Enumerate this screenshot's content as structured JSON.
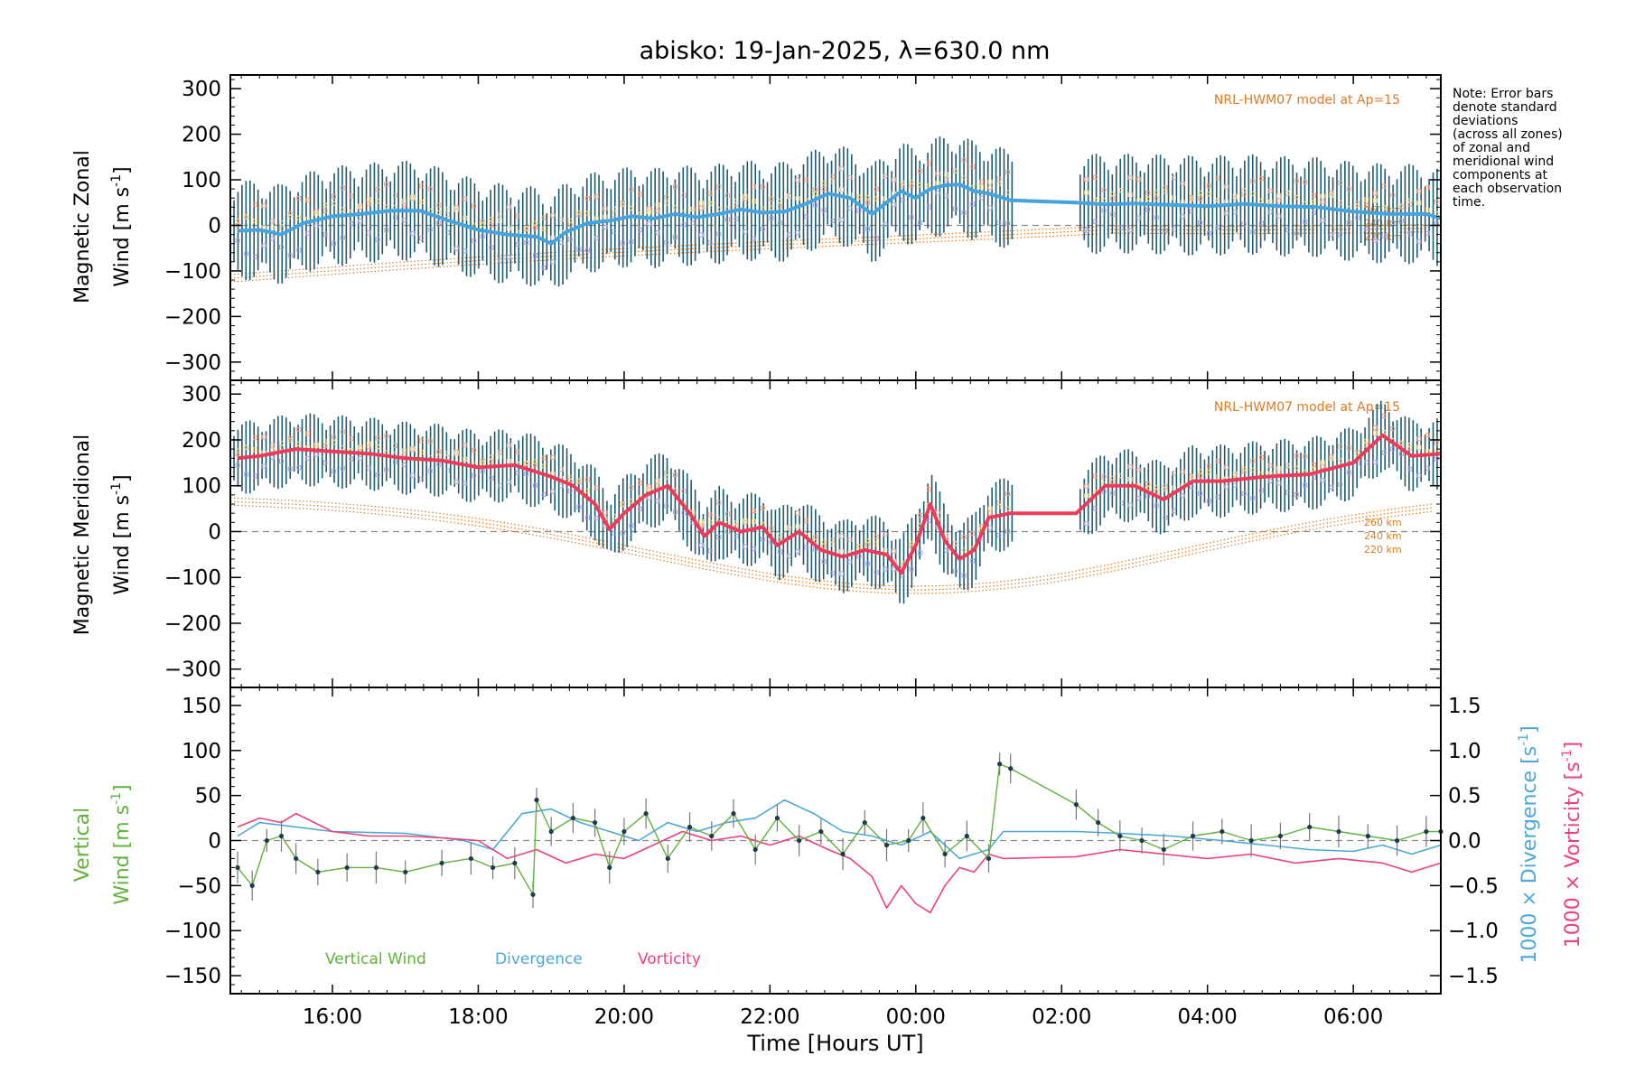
{
  "chart_data": [
    {
      "type": "line",
      "id": "zonal",
      "title": "abisko: 19-Jan-2025, λ=630.0 nm",
      "ylabel_line1": "Magnetic Zonal",
      "ylabel_line2": "Wind [m s",
      "ylabel_sup": "-1",
      "ylabel_end": "]",
      "ylim": [
        -340,
        330
      ],
      "yticks": [
        -300,
        -200,
        -100,
        0,
        100,
        200,
        300
      ],
      "xlim": [
        14.6,
        31.2
      ],
      "model_label": "NRL-HWM07 model at Ap=15",
      "model_altitudes": [
        "260 km",
        "240 km",
        "220 km"
      ],
      "series": [
        {
          "name": "Zonal Wind",
          "x": [
            14.7,
            15.0,
            15.3,
            15.6,
            16.0,
            16.4,
            16.8,
            17.2,
            17.6,
            18.0,
            18.4,
            18.8,
            19.0,
            19.2,
            19.5,
            19.8,
            20.1,
            20.4,
            20.7,
            21.0,
            21.3,
            21.6,
            21.9,
            22.2,
            22.5,
            22.8,
            23.1,
            23.4,
            23.6,
            23.8,
            24.0,
            24.2,
            24.4,
            24.6,
            24.8,
            25.0,
            25.3,
            26.2,
            26.6,
            27.0,
            27.5,
            28.0,
            28.5,
            29.0,
            29.5,
            30.0,
            30.5,
            31.0,
            31.2
          ],
          "values": [
            -12,
            -10,
            -20,
            5,
            20,
            25,
            32,
            32,
            10,
            -10,
            -20,
            -25,
            -40,
            -15,
            5,
            10,
            20,
            15,
            25,
            18,
            25,
            35,
            28,
            30,
            48,
            70,
            60,
            25,
            50,
            75,
            60,
            80,
            88,
            90,
            75,
            70,
            55,
            50,
            46,
            48,
            45,
            42,
            47,
            42,
            40,
            30,
            25,
            25,
            15
          ]
        }
      ],
      "error_bar_halfwidth": 110
    },
    {
      "type": "line",
      "id": "meridional",
      "ylabel_line1": "Magnetic Meridional",
      "ylabel_line2": "Wind [m s",
      "ylabel_sup": "-1",
      "ylabel_end": "]",
      "ylim": [
        -340,
        330
      ],
      "yticks": [
        -300,
        -200,
        -100,
        0,
        100,
        200,
        300
      ],
      "xlim": [
        14.6,
        31.2
      ],
      "model_label": "NRL-HWM07 model at Ap=15",
      "model_altitudes": [
        "260 km",
        "240 km",
        "220 km"
      ],
      "series": [
        {
          "name": "Meridional Wind",
          "x": [
            14.7,
            15.0,
            15.5,
            16.0,
            16.5,
            17.0,
            17.5,
            18.0,
            18.5,
            19.0,
            19.3,
            19.6,
            19.8,
            20.0,
            20.3,
            20.6,
            20.9,
            21.1,
            21.3,
            21.6,
            21.9,
            22.1,
            22.4,
            22.7,
            23.0,
            23.3,
            23.6,
            23.8,
            24.0,
            24.2,
            24.4,
            24.6,
            24.8,
            25.0,
            25.3,
            26.2,
            26.6,
            27.0,
            27.4,
            27.8,
            28.2,
            28.8,
            29.4,
            30.0,
            30.4,
            30.8,
            31.2
          ],
          "values": [
            160,
            165,
            180,
            175,
            170,
            160,
            155,
            140,
            145,
            120,
            100,
            60,
            5,
            40,
            80,
            100,
            40,
            -10,
            20,
            0,
            10,
            -30,
            0,
            -40,
            -55,
            -40,
            -50,
            -90,
            -30,
            60,
            -20,
            -60,
            -40,
            30,
            40,
            40,
            100,
            100,
            70,
            110,
            110,
            120,
            125,
            150,
            210,
            165,
            170
          ]
        }
      ],
      "error_bar_halfwidth": 80
    },
    {
      "type": "line",
      "id": "vertical",
      "ylabel_line1": "Vertical",
      "ylabel_line2": "Wind [m s",
      "ylabel_sup": "-1",
      "ylabel_end": "]",
      "ylim": [
        -170,
        170
      ],
      "yticks": [
        -150,
        -100,
        -50,
        0,
        50,
        100,
        150
      ],
      "y2lim": [
        -1.7,
        1.7
      ],
      "y2ticks": [
        -1.5,
        -1.0,
        -0.5,
        0.0,
        0.5,
        1.0,
        1.5
      ],
      "y2ticklabels": [
        "-1.5",
        "-1.0",
        "-0.5",
        "0.0",
        "0.5",
        "1.0",
        "1.5"
      ],
      "y2label_div": "1000 × Divergence [s",
      "y2label_vor": "1000 × Vorticity [s",
      "y2label_sup": "-1",
      "y2label_end": "]",
      "xlim": [
        14.6,
        31.2
      ],
      "xticks": [
        16,
        18,
        20,
        22,
        24,
        26,
        28,
        30
      ],
      "xticklabels": [
        "16:00",
        "18:00",
        "20:00",
        "22:00",
        "00:00",
        "02:00",
        "04:00",
        "06:00"
      ],
      "xlabel": "Time [Hours UT]",
      "legend": [
        "Vertical Wind",
        "Divergence",
        "Vorticity"
      ],
      "series": [
        {
          "name": "Vertical Wind",
          "x": [
            14.7,
            14.9,
            15.1,
            15.3,
            15.5,
            15.8,
            16.2,
            16.6,
            17.0,
            17.5,
            17.9,
            18.2,
            18.5,
            18.75,
            18.8,
            19.0,
            19.3,
            19.6,
            19.8,
            20.0,
            20.3,
            20.6,
            20.9,
            21.2,
            21.5,
            21.8,
            22.1,
            22.4,
            22.7,
            23.0,
            23.3,
            23.6,
            23.9,
            24.1,
            24.4,
            24.7,
            25.0,
            25.15,
            25.3,
            26.2,
            26.5,
            26.8,
            27.1,
            27.4,
            27.8,
            28.2,
            28.6,
            29.0,
            29.4,
            29.8,
            30.2,
            30.6,
            31.0,
            31.2
          ],
          "values": [
            -30,
            -50,
            0,
            5,
            -20,
            -35,
            -30,
            -30,
            -35,
            -25,
            -20,
            -30,
            -25,
            -60,
            45,
            10,
            25,
            20,
            -30,
            10,
            30,
            -20,
            15,
            5,
            30,
            -10,
            25,
            0,
            10,
            -15,
            20,
            -5,
            0,
            25,
            -15,
            5,
            -20,
            85,
            80,
            40,
            20,
            5,
            0,
            -10,
            5,
            10,
            0,
            5,
            15,
            10,
            5,
            0,
            10,
            10
          ]
        },
        {
          "name": "Divergence",
          "axis": "y2",
          "x": [
            14.7,
            15.0,
            15.5,
            16.0,
            17.0,
            17.8,
            18.2,
            18.6,
            19.0,
            19.4,
            19.8,
            20.2,
            20.6,
            21.0,
            21.4,
            21.8,
            22.2,
            22.6,
            23.0,
            23.4,
            23.8,
            24.2,
            24.6,
            25.0,
            25.2,
            26.2,
            26.8,
            27.5,
            28.2,
            28.8,
            29.4,
            30.0,
            30.4,
            30.8,
            31.2
          ],
          "values": [
            0.05,
            0.2,
            0.15,
            0.1,
            0.08,
            0.0,
            -0.1,
            0.3,
            0.35,
            0.2,
            0.1,
            0.0,
            0.2,
            0.1,
            0.2,
            0.25,
            0.45,
            0.3,
            0.1,
            0.05,
            -0.05,
            0.1,
            -0.2,
            -0.1,
            0.1,
            0.1,
            0.08,
            0.05,
            0.0,
            -0.05,
            -0.1,
            -0.12,
            -0.05,
            -0.15,
            -0.05
          ]
        },
        {
          "name": "Vorticity",
          "axis": "y2",
          "x": [
            14.7,
            15.0,
            15.3,
            15.5,
            16.0,
            16.5,
            17.0,
            17.5,
            18.0,
            18.4,
            18.8,
            19.2,
            19.6,
            20.0,
            20.4,
            20.8,
            21.2,
            21.6,
            22.0,
            22.4,
            22.8,
            23.1,
            23.4,
            23.6,
            23.8,
            24.0,
            24.2,
            24.4,
            24.6,
            24.8,
            25.0,
            25.2,
            26.2,
            26.8,
            27.4,
            28.0,
            28.6,
            29.2,
            29.8,
            30.4,
            30.8,
            31.2
          ],
          "values": [
            0.15,
            0.25,
            0.2,
            0.3,
            0.1,
            0.05,
            0.05,
            0.03,
            0.0,
            -0.2,
            -0.1,
            -0.25,
            -0.15,
            -0.2,
            -0.05,
            0.1,
            0.0,
            0.05,
            -0.05,
            0.05,
            -0.1,
            -0.2,
            -0.4,
            -0.75,
            -0.5,
            -0.7,
            -0.8,
            -0.5,
            -0.3,
            -0.35,
            -0.15,
            -0.2,
            -0.18,
            -0.1,
            -0.15,
            -0.2,
            -0.15,
            -0.25,
            -0.2,
            -0.25,
            -0.35,
            -0.25
          ]
        }
      ]
    }
  ],
  "note": [
    "Note: Error bars",
    "denote standard",
    "deviations",
    "(across all zones)",
    "of zonal and",
    "meridional wind",
    "components at",
    "each observation",
    "time."
  ],
  "colors": {
    "zonal": "#2b5ae0",
    "zonal_light": "#45a4e0",
    "meridional": "#f03a5a",
    "errorbar": "#1f5a6e",
    "model": "#e07a20",
    "scatter_salmon": "#f4a58a",
    "scatter_lavender": "#a8a0e0",
    "scatter_yellow": "#f4e08a",
    "vertical": "#5fb23a",
    "divergence": "#4aa8dc",
    "vorticity": "#f0407a"
  }
}
